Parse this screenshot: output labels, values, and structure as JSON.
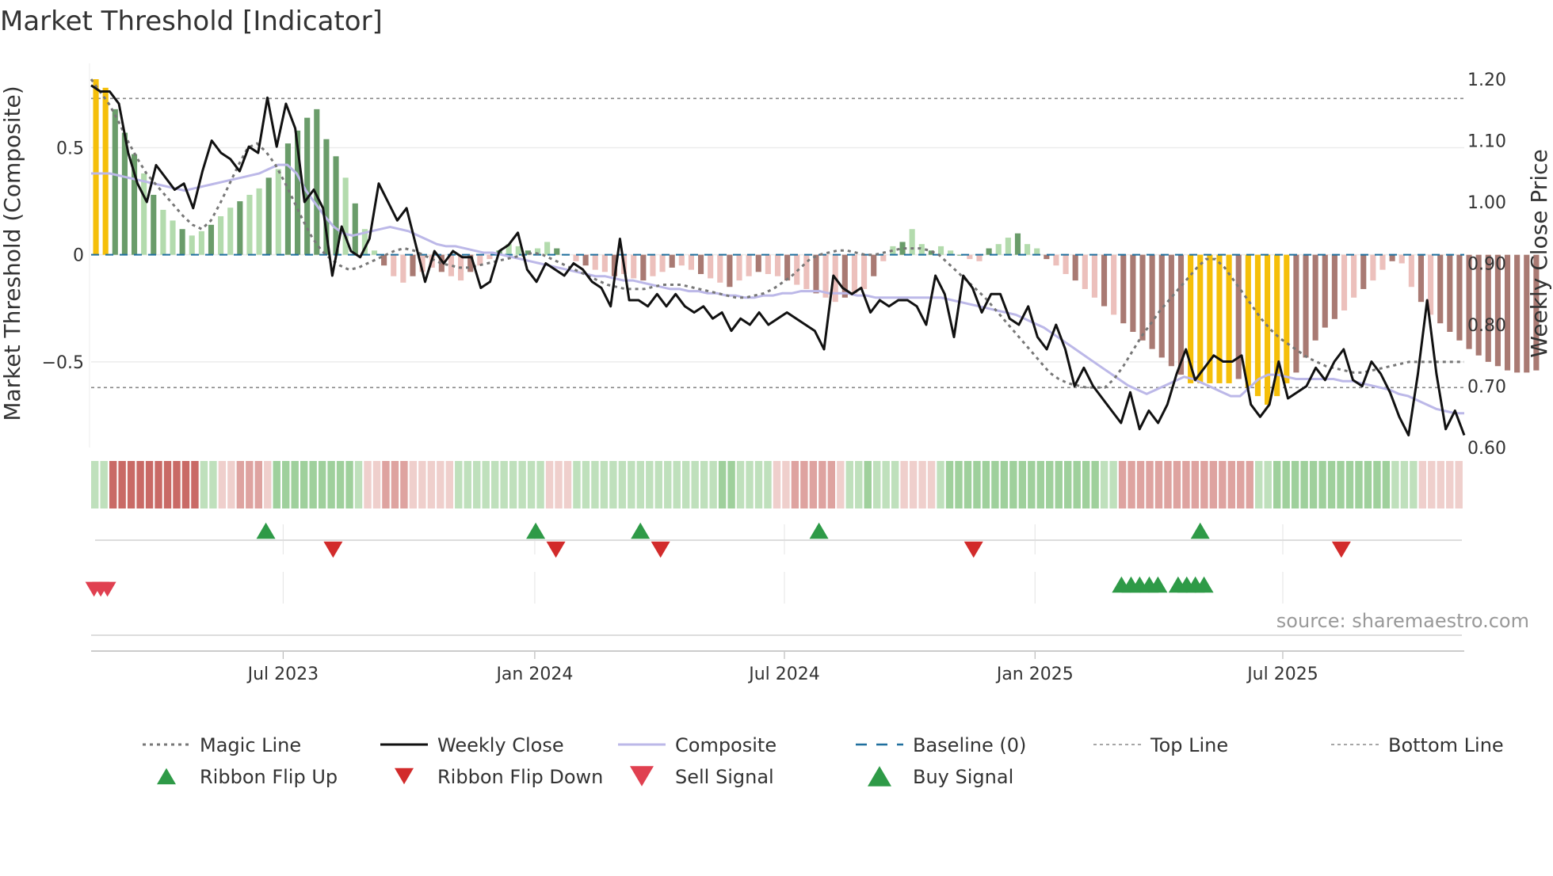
{
  "chart_data": {
    "type": "bar+line",
    "title": "Market Threshold [Indicator]",
    "ylabel_left": "Market Threshold (Composite)",
    "ylabel_right": "Weekly Close Price",
    "ylim_left": [
      -0.9,
      0.82
    ],
    "ylim_right": [
      0.6,
      1.2
    ],
    "yticks_left": [
      {
        "value": 0.5,
        "label": "0.5"
      },
      {
        "value": 0,
        "label": "0"
      },
      {
        "value": -0.5,
        "label": "−0.5"
      }
    ],
    "yticks_right": [
      {
        "value": 1.2,
        "label": "1.20"
      },
      {
        "value": 1.1,
        "label": "1.10"
      },
      {
        "value": 1.0,
        "label": "1.00"
      },
      {
        "value": 0.9,
        "label": "0.90"
      },
      {
        "value": 0.8,
        "label": "0.80"
      },
      {
        "value": 0.7,
        "label": "0.70"
      },
      {
        "value": 0.6,
        "label": "0.60"
      }
    ],
    "x_start_week": 0,
    "x_end_week": 143,
    "x_ticks": [
      {
        "week": 20,
        "label": "Jul 2023"
      },
      {
        "week": 46.2,
        "label": "Jan 2024"
      },
      {
        "week": 72.2,
        "label": "Jul 2024"
      },
      {
        "week": 98.3,
        "label": "Jan 2025"
      },
      {
        "week": 124.1,
        "label": "Jul 2025"
      }
    ],
    "top_line": 0.73,
    "bottom_line": -0.62,
    "baseline": 0,
    "composite_bars": [
      0.82,
      0.78,
      0.68,
      0.57,
      0.47,
      0.38,
      0.28,
      0.21,
      0.16,
      0.12,
      0.09,
      0.11,
      0.14,
      0.18,
      0.22,
      0.25,
      0.28,
      0.31,
      0.36,
      0.4,
      0.52,
      0.58,
      0.64,
      0.68,
      0.54,
      0.46,
      0.36,
      0.24,
      0.12,
      0.02,
      -0.05,
      -0.1,
      -0.13,
      -0.1,
      -0.08,
      -0.06,
      -0.08,
      -0.1,
      -0.12,
      -0.08,
      -0.05,
      -0.02,
      0.02,
      0.05,
      0.04,
      0.02,
      0.03,
      0.06,
      0.03,
      0.0,
      -0.03,
      -0.05,
      -0.07,
      -0.08,
      -0.1,
      -0.09,
      -0.11,
      -0.12,
      -0.1,
      -0.08,
      -0.06,
      -0.05,
      -0.07,
      -0.09,
      -0.11,
      -0.13,
      -0.15,
      -0.12,
      -0.1,
      -0.08,
      -0.09,
      -0.1,
      -0.12,
      -0.14,
      -0.16,
      -0.18,
      -0.2,
      -0.22,
      -0.2,
      -0.18,
      -0.16,
      -0.1,
      -0.03,
      0.04,
      0.06,
      0.12,
      0.05,
      0.02,
      0.04,
      0.02,
      0.0,
      -0.02,
      -0.03,
      0.03,
      0.05,
      0.08,
      0.1,
      0.05,
      0.03,
      -0.02,
      -0.05,
      -0.09,
      -0.12,
      -0.16,
      -0.2,
      -0.24,
      -0.28,
      -0.32,
      -0.36,
      -0.4,
      -0.44,
      -0.48,
      -0.52,
      -0.56,
      -0.6,
      -0.6,
      -0.6,
      -0.6,
      -0.6,
      -0.58,
      -0.62,
      -0.66,
      -0.7,
      -0.66,
      -0.6,
      -0.55,
      -0.48,
      -0.4,
      -0.34,
      -0.3,
      -0.26,
      -0.2,
      -0.16,
      -0.12,
      -0.07,
      -0.03,
      -0.04,
      -0.15,
      -0.22,
      -0.28,
      -0.32,
      -0.36,
      -0.4,
      -0.44,
      -0.47,
      -0.5,
      -0.52,
      -0.54,
      -0.55,
      -0.55,
      -0.54
    ],
    "weekly_close": [
      1.19,
      1.18,
      1.18,
      1.16,
      1.08,
      1.03,
      1.0,
      1.06,
      1.04,
      1.02,
      1.03,
      0.99,
      1.05,
      1.1,
      1.08,
      1.07,
      1.05,
      1.09,
      1.08,
      1.17,
      1.09,
      1.16,
      1.12,
      1.0,
      1.02,
      0.99,
      0.88,
      0.96,
      0.92,
      0.91,
      0.94,
      1.03,
      1.0,
      0.97,
      0.99,
      0.93,
      0.87,
      0.92,
      0.9,
      0.92,
      0.91,
      0.91,
      0.86,
      0.87,
      0.92,
      0.93,
      0.95,
      0.89,
      0.87,
      0.9,
      0.89,
      0.88,
      0.9,
      0.89,
      0.87,
      0.86,
      0.83,
      0.94,
      0.84,
      0.84,
      0.83,
      0.85,
      0.83,
      0.85,
      0.83,
      0.82,
      0.83,
      0.81,
      0.82,
      0.79,
      0.81,
      0.8,
      0.82,
      0.8,
      0.81,
      0.82,
      0.81,
      0.8,
      0.79,
      0.76,
      0.88,
      0.86,
      0.85,
      0.86,
      0.82,
      0.84,
      0.83,
      0.84,
      0.84,
      0.83,
      0.8,
      0.88,
      0.85,
      0.78,
      0.88,
      0.86,
      0.82,
      0.85,
      0.85,
      0.81,
      0.8,
      0.83,
      0.78,
      0.76,
      0.8,
      0.76,
      0.7,
      0.73,
      0.7,
      0.68,
      0.66,
      0.64,
      0.69,
      0.63,
      0.66,
      0.64,
      0.67,
      0.72,
      0.76,
      0.71,
      0.73,
      0.75,
      0.74,
      0.74,
      0.75,
      0.67,
      0.65,
      0.67,
      0.74,
      0.68,
      0.69,
      0.7,
      0.73,
      0.71,
      0.74,
      0.76,
      0.71,
      0.7,
      0.74,
      0.72,
      0.69,
      0.65,
      0.62,
      0.72,
      0.84,
      0.72,
      0.63,
      0.66,
      0.62
    ],
    "composite_line": [
      0.38,
      0.38,
      0.38,
      0.37,
      0.36,
      0.35,
      0.34,
      0.33,
      0.32,
      0.31,
      0.3,
      0.31,
      0.32,
      0.33,
      0.34,
      0.35,
      0.36,
      0.37,
      0.38,
      0.4,
      0.42,
      0.42,
      0.38,
      0.3,
      0.24,
      0.18,
      0.13,
      0.1,
      0.09,
      0.1,
      0.11,
      0.12,
      0.13,
      0.12,
      0.11,
      0.09,
      0.07,
      0.05,
      0.04,
      0.04,
      0.03,
      0.02,
      0.01,
      0.01,
      0.0,
      -0.01,
      -0.02,
      -0.03,
      -0.04,
      -0.05,
      -0.06,
      -0.07,
      -0.08,
      -0.09,
      -0.1,
      -0.1,
      -0.11,
      -0.12,
      -0.12,
      -0.13,
      -0.14,
      -0.15,
      -0.16,
      -0.16,
      -0.17,
      -0.17,
      -0.18,
      -0.18,
      -0.19,
      -0.19,
      -0.2,
      -0.2,
      -0.19,
      -0.19,
      -0.18,
      -0.18,
      -0.17,
      -0.17,
      -0.17,
      -0.18,
      -0.18,
      -0.18,
      -0.19,
      -0.19,
      -0.2,
      -0.2,
      -0.2,
      -0.2,
      -0.2,
      -0.2,
      -0.2,
      -0.2,
      -0.21,
      -0.22,
      -0.23,
      -0.24,
      -0.25,
      -0.26,
      -0.27,
      -0.28,
      -0.3,
      -0.32,
      -0.34,
      -0.37,
      -0.4,
      -0.43,
      -0.46,
      -0.49,
      -0.52,
      -0.55,
      -0.58,
      -0.61,
      -0.63,
      -0.65,
      -0.63,
      -0.61,
      -0.59,
      -0.57,
      -0.58,
      -0.6,
      -0.62,
      -0.64,
      -0.66,
      -0.66,
      -0.62,
      -0.58,
      -0.56,
      -0.56,
      -0.57,
      -0.58,
      -0.58,
      -0.58,
      -0.58,
      -0.58,
      -0.59,
      -0.59,
      -0.6,
      -0.61,
      -0.62,
      -0.63,
      -0.65,
      -0.66,
      -0.68,
      -0.7,
      -0.72,
      -0.73,
      -0.74,
      -0.74
    ],
    "magic_line": [
      0.82,
      0.76,
      0.7,
      0.62,
      0.53,
      0.45,
      0.38,
      0.33,
      0.28,
      0.23,
      0.18,
      0.14,
      0.12,
      0.16,
      0.24,
      0.33,
      0.42,
      0.5,
      0.52,
      0.48,
      0.42,
      0.34,
      0.25,
      0.16,
      0.08,
      0.02,
      -0.02,
      -0.05,
      -0.07,
      -0.06,
      -0.04,
      -0.02,
      0.0,
      0.02,
      0.03,
      0.02,
      0.0,
      -0.02,
      -0.04,
      -0.05,
      -0.06,
      -0.06,
      -0.05,
      -0.04,
      -0.03,
      -0.02,
      -0.01,
      0.0,
      0.01,
      0.0,
      -0.02,
      -0.04,
      -0.06,
      -0.08,
      -0.1,
      -0.12,
      -0.14,
      -0.15,
      -0.16,
      -0.16,
      -0.16,
      -0.15,
      -0.14,
      -0.14,
      -0.14,
      -0.15,
      -0.16,
      -0.17,
      -0.18,
      -0.19,
      -0.2,
      -0.2,
      -0.19,
      -0.18,
      -0.16,
      -0.13,
      -0.1,
      -0.06,
      -0.02,
      0.0,
      0.01,
      0.02,
      0.02,
      0.01,
      0.0,
      0.0,
      0.01,
      0.02,
      0.03,
      0.03,
      0.03,
      0.02,
      0.0,
      -0.04,
      -0.08,
      -0.12,
      -0.16,
      -0.2,
      -0.25,
      -0.3,
      -0.35,
      -0.4,
      -0.45,
      -0.5,
      -0.55,
      -0.58,
      -0.6,
      -0.61,
      -0.62,
      -0.62,
      -0.62,
      -0.58,
      -0.52,
      -0.45,
      -0.38,
      -0.32,
      -0.26,
      -0.21,
      -0.16,
      -0.11,
      -0.06,
      -0.02,
      -0.02,
      -0.06,
      -0.12,
      -0.18,
      -0.24,
      -0.3,
      -0.35,
      -0.39,
      -0.42,
      -0.45,
      -0.48,
      -0.5,
      -0.52,
      -0.53,
      -0.54,
      -0.55,
      -0.55,
      -0.54,
      -0.53,
      -0.52,
      -0.51,
      -0.5,
      -0.5,
      -0.5,
      -0.5,
      -0.5,
      -0.5,
      -0.5
    ],
    "ribbon_flip_up_weeks": [
      18.2,
      46.3,
      57.2,
      75.8,
      115.5
    ],
    "ribbon_flip_down_weeks": [
      25.2,
      48.4,
      59.3,
      91.9,
      130.2
    ],
    "sell_signal_weeks": [
      0.3,
      1.0,
      1.7
    ],
    "buy_signal_weeks": [
      107.3,
      108.3,
      109.2,
      110.2,
      111.1,
      113.2,
      114.1,
      115.0,
      115.9
    ],
    "source": "source: sharemaestro.com",
    "legend": [
      {
        "label": "Magic Line",
        "kind": "line-dotted",
        "color": "#777777"
      },
      {
        "label": "Weekly Close",
        "kind": "line",
        "color": "#111111"
      },
      {
        "label": "Composite",
        "kind": "line",
        "color": "#bcb8e8"
      },
      {
        "label": "Baseline (0)",
        "kind": "line-dashed",
        "color": "#1f6f9e"
      },
      {
        "label": "Top Line",
        "kind": "line-dotted-thin",
        "color": "#888888"
      },
      {
        "label": "Bottom Line",
        "kind": "line-dotted-thin",
        "color": "#888888"
      },
      {
        "label": "Ribbon Flip Up",
        "kind": "triangle-up-small",
        "color": "#2e9a47"
      },
      {
        "label": "Ribbon Flip Down",
        "kind": "triangle-down-small",
        "color": "#d22b2b"
      },
      {
        "label": "Sell Signal",
        "kind": "triangle-down-large",
        "color": "#e04050"
      },
      {
        "label": "Buy Signal",
        "kind": "triangle-up-large",
        "color": "#2e9a47"
      }
    ],
    "colors": {
      "bullish_strong": "#6a9c6a",
      "bullish_weak": "#b3dbad",
      "bearish_strong": "#a97a73",
      "bearish_weak": "#ecc0bc",
      "extreme": "#f5bf0a",
      "ribbon_bear_dark": "#c96a66",
      "ribbon_bull": "#bfe0bc"
    }
  }
}
